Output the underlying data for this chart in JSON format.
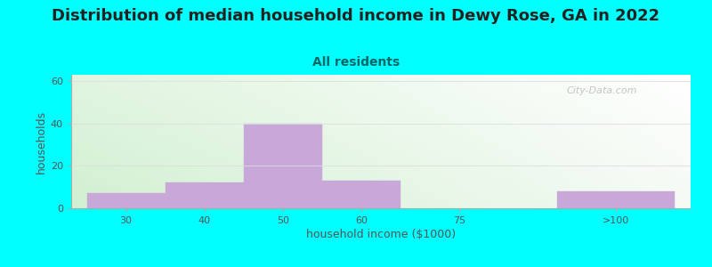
{
  "title": "Distribution of median household income in Dewy Rose, GA in 2022",
  "subtitle": "All residents",
  "xlabel": "household income ($1000)",
  "ylabel": "households",
  "bar_heights": [
    7,
    12,
    40,
    13,
    0,
    8
  ],
  "bar_left_edges": [
    0,
    10,
    20,
    30,
    40,
    60
  ],
  "bar_right_edges": [
    10,
    20,
    30,
    40,
    55,
    75
  ],
  "xtick_positions": [
    5,
    15,
    25,
    35,
    47.5,
    67.5
  ],
  "xtick_labels": [
    "30",
    "40",
    "50",
    "60",
    "75",
    ">100"
  ],
  "ytick_values": [
    0,
    20,
    40,
    60
  ],
  "xlim": [
    -2,
    77
  ],
  "ylim": [
    0,
    63
  ],
  "bar_color": "#C8A8D8",
  "bar_edge_color": "#C8A8D8",
  "background_color": "#00FFFF",
  "gradient_tl": [
    0.88,
    0.96,
    0.88
  ],
  "gradient_tr": [
    1.0,
    1.0,
    1.0
  ],
  "gradient_bl": [
    0.82,
    0.94,
    0.82
  ],
  "gradient_br": [
    0.96,
    0.98,
    0.96
  ],
  "watermark": "City-Data.com",
  "title_fontsize": 13,
  "subtitle_fontsize": 10,
  "axis_label_fontsize": 9,
  "tick_fontsize": 8,
  "title_color": "#222222",
  "subtitle_color": "#006666",
  "label_color": "#555555",
  "tick_color": "#555555"
}
